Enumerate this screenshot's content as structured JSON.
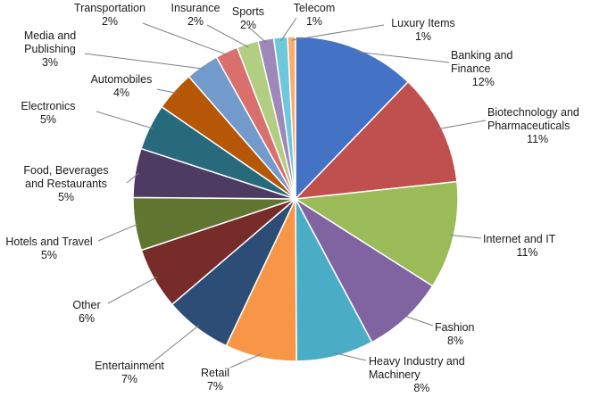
{
  "chart_data": {
    "type": "pie",
    "title": "",
    "start_angle_deg": 0,
    "direction": "clockwise",
    "slices": [
      {
        "label": "Banking and Finance",
        "value_text": "12%",
        "value": 12.5,
        "color": "#4472C4"
      },
      {
        "label": "Biotechnology and Pharmaceuticals",
        "value_text": "11%",
        "value": 11.4,
        "color": "#C0504D"
      },
      {
        "label": "Internet and IT",
        "value_text": "11%",
        "value": 11.0,
        "color": "#9BBB59"
      },
      {
        "label": "Fashion",
        "value_text": "8%",
        "value": 8.4,
        "color": "#8064A2"
      },
      {
        "label": "Heavy Industry and Machinery",
        "value_text": "8%",
        "value": 7.9,
        "color": "#4BACC6"
      },
      {
        "label": "Retail",
        "value_text": "7%",
        "value": 7.3,
        "color": "#F79646"
      },
      {
        "label": "Entertainment",
        "value_text": "7%",
        "value": 6.9,
        "color": "#2C4D75"
      },
      {
        "label": "Other",
        "value_text": "6%",
        "value": 6.3,
        "color": "#772C2A"
      },
      {
        "label": "Hotels and Travel",
        "value_text": "5%",
        "value": 5.4,
        "color": "#5F7530"
      },
      {
        "label": "Food, Beverages and Restaurants",
        "value_text": "5%",
        "value": 5.0,
        "color": "#4D3B62"
      },
      {
        "label": "Electronics",
        "value_text": "5%",
        "value": 4.7,
        "color": "#276A7C"
      },
      {
        "label": "Automobiles",
        "value_text": "4%",
        "value": 4.1,
        "color": "#B65708"
      },
      {
        "label": "Media and Publishing",
        "value_text": "3%",
        "value": 3.4,
        "color": "#729ACA"
      },
      {
        "label": "Transportation",
        "value_text": "2%",
        "value": 2.3,
        "color": "#D9706E"
      },
      {
        "label": "Insurance",
        "value_text": "2%",
        "value": 2.2,
        "color": "#B2CE82"
      },
      {
        "label": "Sports",
        "value_text": "2%",
        "value": 1.6,
        "color": "#9E88BA"
      },
      {
        "label": "Telecom",
        "value_text": "1%",
        "value": 1.4,
        "color": "#6EC7DA"
      },
      {
        "label": "Luxury Items",
        "value_text": "1%",
        "value": 0.8,
        "color": "#F9AC6B"
      }
    ]
  }
}
